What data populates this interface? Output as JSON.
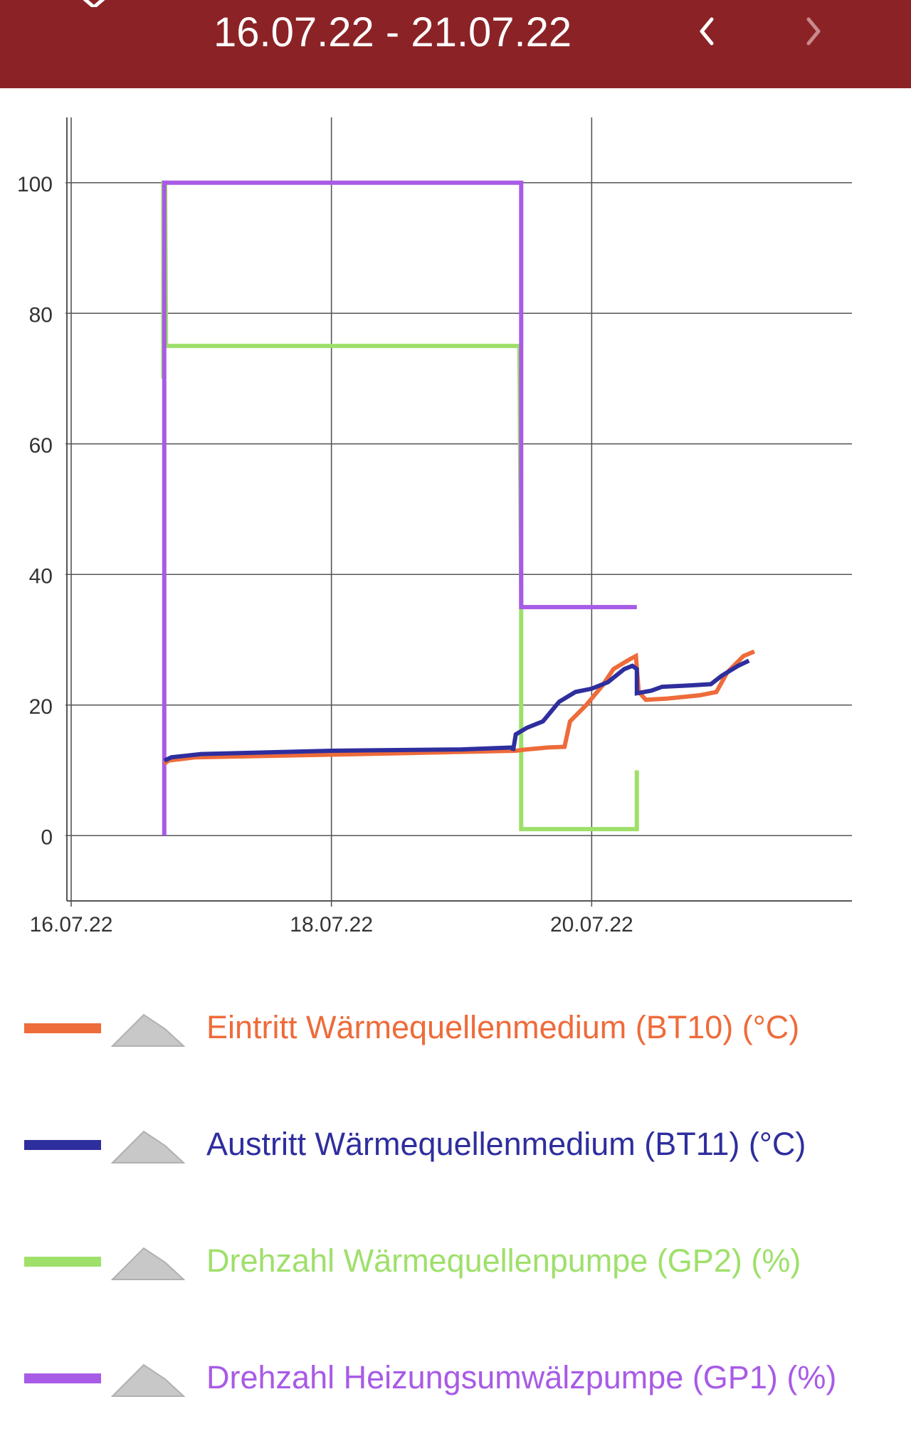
{
  "header": {
    "date_range": "16.07.22 - 21.07.22",
    "prev_icon": "chevron-left-icon",
    "next_icon": "chevron-right-icon"
  },
  "chart_data": {
    "type": "line",
    "x_type": "date",
    "xlim": [
      "2022-07-16",
      "2022-07-22"
    ],
    "ylim": [
      -10,
      110
    ],
    "x_ticks": [
      {
        "date": "2022-07-16",
        "label": "16.07.22"
      },
      {
        "date": "2022-07-18",
        "label": "18.07.22"
      },
      {
        "date": "2022-07-20",
        "label": "20.07.22"
      }
    ],
    "y_ticks": [
      0,
      20,
      40,
      60,
      80,
      100
    ],
    "y_tick_labels": [
      "0",
      "20",
      "40",
      "60",
      "80",
      "100"
    ],
    "grid": true,
    "legend_position": "bottom",
    "series": [
      {
        "name": "Drehzahl Wärmequellenpumpe (GP2) (%)",
        "color": "#9ee06a",
        "points": [
          [
            "2022-07-16T17:00",
            70
          ],
          [
            "2022-07-16T17:00",
            100
          ],
          [
            "2022-07-16T17:20",
            100
          ],
          [
            "2022-07-16T17:30",
            75
          ],
          [
            "2022-07-19T10:40",
            75
          ],
          [
            "2022-07-19T11:00",
            35
          ],
          [
            "2022-07-19T11:00",
            1
          ],
          [
            "2022-07-20T08:20",
            1
          ],
          [
            "2022-07-20T08:20",
            10
          ]
        ]
      },
      {
        "name": "Drehzahl Heizungsumwälzpumpe (GP1) (%)",
        "color": "#a85be6",
        "points": [
          [
            "2022-07-16T17:10",
            0
          ],
          [
            "2022-07-16T17:10",
            100
          ],
          [
            "2022-07-19T11:00",
            100
          ],
          [
            "2022-07-19T11:00",
            35
          ],
          [
            "2022-07-20T08:20",
            35
          ]
        ]
      },
      {
        "name": "Eintritt Wärmequellenmedium (BT10) (°C)",
        "color": "#ee6b3a",
        "points": [
          [
            "2022-07-16T17:10",
            11
          ],
          [
            "2022-07-16T18:00",
            11.5
          ],
          [
            "2022-07-16T23:00",
            12
          ],
          [
            "2022-07-17T12:00",
            12.2
          ],
          [
            "2022-07-18T12:00",
            12.6
          ],
          [
            "2022-07-19T10:00",
            13
          ],
          [
            "2022-07-19T12:00",
            13.2
          ],
          [
            "2022-07-19T16:00",
            13.5
          ],
          [
            "2022-07-19T19:00",
            13.6
          ],
          [
            "2022-07-19T20:00",
            17.5
          ],
          [
            "2022-07-19T23:00",
            20
          ],
          [
            "2022-07-20T02:00",
            23
          ],
          [
            "2022-07-20T04:00",
            25.5
          ],
          [
            "2022-07-20T07:00",
            27
          ],
          [
            "2022-07-20T08:10",
            27.5
          ],
          [
            "2022-07-20T08:40",
            22
          ],
          [
            "2022-07-20T10:00",
            20.8
          ],
          [
            "2022-07-20T14:00",
            21
          ],
          [
            "2022-07-20T20:00",
            21.5
          ],
          [
            "2022-07-20T23:00",
            22
          ],
          [
            "2022-07-21T01:00",
            25
          ],
          [
            "2022-07-21T04:00",
            27.5
          ],
          [
            "2022-07-21T06:00",
            28.2
          ]
        ]
      },
      {
        "name": "Austritt Wärmequellenmedium (BT11) (°C)",
        "color": "#2e2e9e",
        "points": [
          [
            "2022-07-16T17:10",
            11.5
          ],
          [
            "2022-07-16T18:30",
            12
          ],
          [
            "2022-07-17T00:00",
            12.5
          ],
          [
            "2022-07-18T00:00",
            13
          ],
          [
            "2022-07-19T00:00",
            13.2
          ],
          [
            "2022-07-19T09:30",
            13.5
          ],
          [
            "2022-07-19T09:30",
            13
          ],
          [
            "2022-07-19T10:00",
            15.5
          ],
          [
            "2022-07-19T12:00",
            16.5
          ],
          [
            "2022-07-19T15:00",
            17.5
          ],
          [
            "2022-07-19T18:00",
            20.5
          ],
          [
            "2022-07-19T21:00",
            22
          ],
          [
            "2022-07-20T00:00",
            22.5
          ],
          [
            "2022-07-20T03:00",
            23.5
          ],
          [
            "2022-07-20T06:00",
            25.5
          ],
          [
            "2022-07-20T07:30",
            26
          ],
          [
            "2022-07-20T08:20",
            25.5
          ],
          [
            "2022-07-20T08:20",
            21.8
          ],
          [
            "2022-07-20T11:00",
            22.2
          ],
          [
            "2022-07-20T13:00",
            22.8
          ],
          [
            "2022-07-20T18:00",
            23
          ],
          [
            "2022-07-20T22:00",
            23.2
          ],
          [
            "2022-07-21T00:00",
            24.5
          ],
          [
            "2022-07-21T03:00",
            26
          ],
          [
            "2022-07-21T05:00",
            26.8
          ]
        ]
      }
    ]
  },
  "legend": {
    "toggle_icon": "mountain-toggle-icon",
    "items": [
      {
        "label": "Eintritt Wärmequellenmedium (BT10) (°C)",
        "color": "#ee6b3a"
      },
      {
        "label": "Austritt Wärmequellenmedium (BT11) (°C)",
        "color": "#2e2e9e"
      },
      {
        "label": "Drehzahl Wärmequellenpumpe (GP2) (%)",
        "color": "#9ee06a"
      },
      {
        "label": "Drehzahl Heizungsumwälzpumpe (GP1) (%)",
        "color": "#a85be6"
      }
    ]
  },
  "colors": {
    "header_bg": "#8b2326",
    "header_text": "#ffffff",
    "grid": "#555555",
    "tick_text": "#333333",
    "toggle_fill": "#c8c8c8"
  }
}
